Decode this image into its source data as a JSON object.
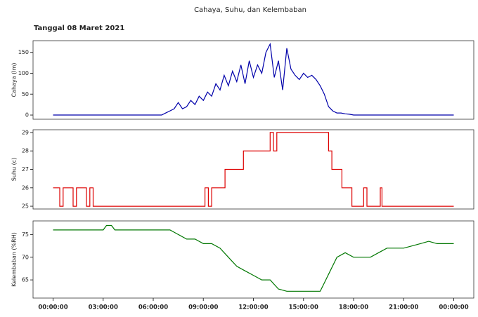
{
  "title": "Cahaya, Suhu, dan Kelembaban",
  "subtitle": "Tanggal 08 Maret 2021",
  "chart_data": [
    {
      "type": "line",
      "ylabel": "Cahaya (lm)",
      "color": "#0000aa",
      "xlim": [
        -1.2,
        25.2
      ],
      "ylim": [
        -10,
        178
      ],
      "yticks": [
        0,
        50,
        100,
        150
      ],
      "x": [
        0,
        1,
        2,
        3,
        4,
        5,
        6,
        6.25,
        6.5,
        6.75,
        7,
        7.25,
        7.5,
        7.75,
        8,
        8.25,
        8.5,
        8.75,
        9,
        9.25,
        9.5,
        9.75,
        10,
        10.25,
        10.5,
        10.75,
        11,
        11.25,
        11.5,
        11.75,
        12,
        12.25,
        12.5,
        12.75,
        13,
        13.25,
        13.5,
        13.75,
        14,
        14.25,
        14.5,
        14.75,
        15,
        15.25,
        15.5,
        15.75,
        16,
        16.25,
        16.5,
        16.75,
        17,
        17.25,
        17.5,
        17.75,
        18,
        19,
        20,
        21,
        22,
        23,
        24
      ],
      "values": [
        0,
        0,
        0,
        0,
        0,
        0,
        0,
        0,
        0,
        5,
        10,
        15,
        30,
        15,
        20,
        35,
        25,
        45,
        35,
        55,
        45,
        75,
        60,
        95,
        70,
        105,
        80,
        120,
        75,
        130,
        90,
        120,
        100,
        150,
        170,
        90,
        130,
        60,
        160,
        110,
        95,
        85,
        100,
        90,
        95,
        85,
        70,
        50,
        20,
        10,
        5,
        5,
        3,
        2,
        0,
        0,
        0,
        0,
        0,
        0,
        0
      ]
    },
    {
      "type": "line",
      "ylabel": "Suhu (c)",
      "color": "#dd0000",
      "xlim": [
        -1.2,
        25.2
      ],
      "ylim": [
        24.85,
        29.15
      ],
      "yticks": [
        25,
        26,
        27,
        28,
        29
      ],
      "x": [
        0,
        0.4,
        0.4,
        0.6,
        0.6,
        1.2,
        1.2,
        1.4,
        1.4,
        2,
        2,
        2.2,
        2.2,
        2.4,
        2.4,
        9.1,
        9.1,
        9.3,
        9.3,
        9.5,
        9.5,
        10.3,
        10.3,
        11.4,
        11.4,
        13,
        13,
        13.2,
        13.2,
        13.4,
        13.4,
        16.5,
        16.5,
        16.7,
        16.7,
        17.3,
        17.3,
        17.9,
        17.9,
        18.6,
        18.6,
        18.8,
        18.8,
        19.6,
        19.6,
        19.7,
        19.7,
        24
      ],
      "values": [
        26,
        26,
        25,
        25,
        26,
        26,
        25,
        25,
        26,
        26,
        25,
        25,
        26,
        26,
        25,
        25,
        26,
        26,
        25,
        25,
        26,
        26,
        27,
        27,
        28,
        28,
        29,
        29,
        28,
        28,
        29,
        29,
        28,
        28,
        27,
        27,
        26,
        26,
        25,
        25,
        26,
        26,
        25,
        25,
        26,
        26,
        25,
        25
      ]
    },
    {
      "type": "line",
      "ylabel": "Kelembaban (%RH)",
      "color": "#007700",
      "xlim": [
        -1.2,
        25.2
      ],
      "ylim": [
        61,
        78
      ],
      "yticks": [
        65,
        70,
        75
      ],
      "xticks": [
        {
          "value": 0,
          "label": "00:00:00"
        },
        {
          "value": 3,
          "label": "03:00:00"
        },
        {
          "value": 6,
          "label": "06:00:00"
        },
        {
          "value": 9,
          "label": "09:00:00"
        },
        {
          "value": 12,
          "label": "12:00:00"
        },
        {
          "value": 15,
          "label": "15:00:00"
        },
        {
          "value": 18,
          "label": "18:00:00"
        },
        {
          "value": 21,
          "label": "21:00:00"
        },
        {
          "value": 24,
          "label": "00:00:00"
        }
      ],
      "x": [
        0,
        1,
        2,
        3,
        3.2,
        3.5,
        3.7,
        5,
        6,
        7,
        7.5,
        8,
        8.5,
        9,
        9.5,
        10,
        10.5,
        11,
        11.5,
        12,
        12.5,
        13,
        13.5,
        14,
        14.5,
        15,
        15.5,
        16,
        16.2,
        16.6,
        17,
        17.5,
        18,
        18.5,
        19,
        19.5,
        20,
        21,
        22,
        22.5,
        23,
        24
      ],
      "values": [
        76,
        76,
        76,
        76,
        77,
        77,
        76,
        76,
        76,
        76,
        75,
        74,
        74,
        73,
        73,
        72,
        70,
        68,
        67,
        66,
        65,
        65,
        63,
        62.5,
        62.5,
        62.5,
        62.5,
        62.5,
        64,
        67,
        70,
        71,
        70,
        70,
        70,
        71,
        72,
        72,
        73,
        73.5,
        73,
        73
      ]
    }
  ]
}
